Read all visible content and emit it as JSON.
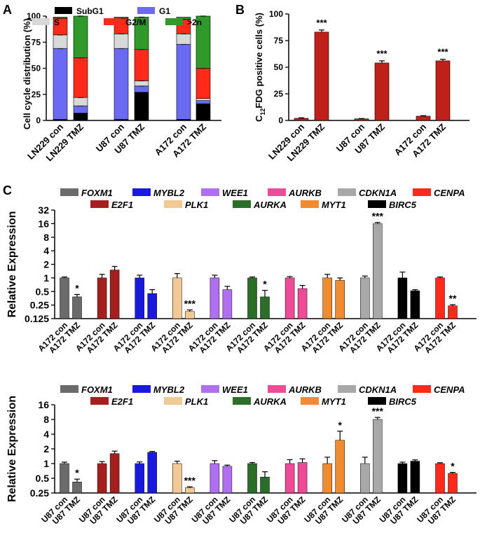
{
  "panel_labels": {
    "a": "A",
    "b": "B",
    "c": "C"
  },
  "chart_data": [
    {
      "id": "A",
      "type": "bar",
      "stacked": true,
      "ylabel": "Cell cycle distribution (%)",
      "ylim": [
        0,
        100
      ],
      "yticks": [
        0,
        25,
        50,
        75,
        100
      ],
      "categories": [
        "LN229 con",
        "LN229 TMZ",
        "U87 con",
        "U87 TMZ",
        "A172 con",
        "A172 TMZ"
      ],
      "series": [
        {
          "name": "SubG1",
          "color": "#000000",
          "values": [
            1,
            7,
            1,
            27,
            1,
            16
          ]
        },
        {
          "name": "G1",
          "color": "#6a6af2",
          "values": [
            68,
            7,
            68,
            6,
            72,
            3
          ]
        },
        {
          "name": "S",
          "color": "#d8d8d8",
          "values": [
            13,
            8,
            14,
            5,
            10,
            2
          ]
        },
        {
          "name": "G2/M",
          "color": "#ff2a1a",
          "values": [
            16,
            38,
            15,
            30,
            14,
            29
          ]
        },
        {
          "name": ">2n",
          "color": "#2f9a2a",
          "values": [
            1,
            40,
            1,
            31,
            2,
            50
          ]
        }
      ]
    },
    {
      "id": "B",
      "type": "bar",
      "ylabel": "C12FDG positive cells (%)",
      "ylabel_main": "C",
      "ylabel_sub": "12",
      "ylabel_rest": "FDG positive cells (%)",
      "ylim": [
        0,
        100
      ],
      "yticks": [
        0,
        25,
        50,
        75,
        100
      ],
      "color": "#c0201a",
      "categories": [
        "LN229 con",
        "LN229 TMZ",
        "U87 con",
        "U87 TMZ",
        "A172 con",
        "A172 TMZ"
      ],
      "values": [
        2,
        83,
        1.5,
        54,
        4,
        56
      ],
      "errors": [
        0.5,
        2,
        0.3,
        2,
        0.5,
        1.5
      ],
      "significance": [
        "",
        "***",
        "",
        "***",
        "",
        "***"
      ]
    },
    {
      "id": "C-A172",
      "type": "bar",
      "scale": "log2",
      "ylabel": "Relative Expression",
      "ylim": [
        0.125,
        32
      ],
      "yticks": [
        "0.125",
        "0.25",
        "0.5",
        "1",
        "2",
        "4",
        "8",
        "16",
        "32"
      ],
      "legend_row1": [
        "FOXM1",
        "MYBL2",
        "WEE1",
        "AURKB",
        "CDKN1A",
        "CENPA"
      ],
      "legend_row2": [
        "E2F1",
        "PLK1",
        "AURKA",
        "MYT1",
        "BIRC5"
      ],
      "groups": [
        {
          "gene": "FOXM1",
          "color": "#6b6b6b",
          "labels": [
            "A172 con",
            "A172 TMZ"
          ],
          "values": [
            1,
            0.38
          ],
          "errors": [
            0.05,
            0.05
          ],
          "sig": [
            "",
            "*"
          ]
        },
        {
          "gene": "E2F1",
          "color": "#a61f1f",
          "labels": [
            "A172 con",
            "A172 TMZ"
          ],
          "values": [
            1,
            1.5
          ],
          "errors": [
            0.2,
            0.3
          ],
          "sig": [
            "",
            ""
          ]
        },
        {
          "gene": "MYBL2",
          "color": "#1a1adf",
          "labels": [
            "A172 con",
            "A172 TMZ"
          ],
          "values": [
            1,
            0.45
          ],
          "errors": [
            0.15,
            0.1
          ],
          "sig": [
            "",
            ""
          ]
        },
        {
          "gene": "PLK1",
          "color": "#f2c994",
          "labels": [
            "A172 con",
            "A172 TMZ"
          ],
          "values": [
            1,
            0.18
          ],
          "errors": [
            0.25,
            0.015
          ],
          "sig": [
            "",
            "***"
          ]
        },
        {
          "gene": "WEE1",
          "color": "#b06ef0",
          "labels": [
            "A172 con",
            "A172 TMZ"
          ],
          "values": [
            1,
            0.55
          ],
          "errors": [
            0.15,
            0.1
          ],
          "sig": [
            "",
            ""
          ]
        },
        {
          "gene": "AURKA",
          "color": "#2a6e2a",
          "labels": [
            "A172 con",
            "A172 TMZ"
          ],
          "values": [
            1,
            0.38
          ],
          "errors": [
            0.05,
            0.15
          ],
          "sig": [
            "",
            "*"
          ]
        },
        {
          "gene": "AURKB",
          "color": "#ee4a97",
          "labels": [
            "A172 con",
            "A172 TMZ"
          ],
          "values": [
            1,
            0.58
          ],
          "errors": [
            0.07,
            0.1
          ],
          "sig": [
            "",
            ""
          ]
        },
        {
          "gene": "MYT1",
          "color": "#f08c2f",
          "labels": [
            "A172 con",
            "A172 TMZ"
          ],
          "values": [
            1,
            0.88
          ],
          "errors": [
            0.2,
            0.12
          ],
          "sig": [
            "",
            ""
          ]
        },
        {
          "gene": "CDKN1A",
          "color": "#a8a8a8",
          "labels": [
            "A172 con",
            "A172 TMZ"
          ],
          "values": [
            1,
            16
          ],
          "errors": [
            0.1,
            1
          ],
          "sig": [
            "",
            "***"
          ]
        },
        {
          "gene": "BIRC5",
          "color": "#000000",
          "labels": [
            "A172 con",
            "A172 TMZ"
          ],
          "values": [
            1,
            0.52
          ],
          "errors": [
            0.35,
            0.03
          ],
          "sig": [
            "",
            ""
          ]
        },
        {
          "gene": "CENPA",
          "color": "#ff2a1a",
          "labels": [
            "A172 con",
            "A172 TMZ"
          ],
          "values": [
            1,
            0.24
          ],
          "errors": [
            0.05,
            0.015
          ],
          "sig": [
            "",
            "**"
          ]
        }
      ]
    },
    {
      "id": "C-U87",
      "type": "bar",
      "scale": "log2",
      "ylabel": "Relative Expression",
      "ylim": [
        0.25,
        16
      ],
      "yticks": [
        "0.25",
        "0.5",
        "1",
        "2",
        "4",
        "8",
        "16"
      ],
      "legend_row1": [
        "FOXM1",
        "MYBL2",
        "WEE1",
        "AURKB",
        "CDKN1A",
        "CENPA"
      ],
      "legend_row2": [
        "E2F1",
        "PLK1",
        "AURKA",
        "MYT1",
        "BIRC5"
      ],
      "groups": [
        {
          "gene": "FOXM1",
          "color": "#6b6b6b",
          "labels": [
            "U87 con",
            "U87 TMZ"
          ],
          "values": [
            1,
            0.42
          ],
          "errors": [
            0.07,
            0.06
          ],
          "sig": [
            "",
            "*"
          ]
        },
        {
          "gene": "E2F1",
          "color": "#a61f1f",
          "labels": [
            "U87 con",
            "U87 TMZ"
          ],
          "values": [
            1,
            1.6
          ],
          "errors": [
            0.1,
            0.2
          ],
          "sig": [
            "",
            ""
          ]
        },
        {
          "gene": "MYBL2",
          "color": "#1a1adf",
          "labels": [
            "U87 con",
            "U87 TMZ"
          ],
          "values": [
            1,
            1.7
          ],
          "errors": [
            0.08,
            0.07
          ],
          "sig": [
            "",
            ""
          ]
        },
        {
          "gene": "PLK1",
          "color": "#f2c994",
          "labels": [
            "U87 con",
            "U87 TMZ"
          ],
          "values": [
            1,
            0.32
          ],
          "errors": [
            0.12,
            0.015
          ],
          "sig": [
            "",
            "***"
          ]
        },
        {
          "gene": "WEE1",
          "color": "#b06ef0",
          "labels": [
            "U87 con",
            "U87 TMZ"
          ],
          "values": [
            1,
            0.88
          ],
          "errors": [
            0.15,
            0.05
          ],
          "sig": [
            "",
            ""
          ]
        },
        {
          "gene": "AURKA",
          "color": "#2a6e2a",
          "labels": [
            "U87 con",
            "U87 TMZ"
          ],
          "values": [
            1,
            0.53
          ],
          "errors": [
            0.05,
            0.15
          ],
          "sig": [
            "",
            ""
          ]
        },
        {
          "gene": "AURKB",
          "color": "#ee4a97",
          "labels": [
            "U87 con",
            "U87 TMZ"
          ],
          "values": [
            1,
            1.05
          ],
          "errors": [
            0.2,
            0.2
          ],
          "sig": [
            "",
            ""
          ]
        },
        {
          "gene": "MYT1",
          "color": "#f08c2f",
          "labels": [
            "U87 con",
            "U87 TMZ"
          ],
          "values": [
            1,
            3
          ],
          "errors": [
            0.35,
            1.6
          ],
          "sig": [
            "",
            "*"
          ]
        },
        {
          "gene": "CDKN1A",
          "color": "#a8a8a8",
          "labels": [
            "U87 con",
            "U87 TMZ"
          ],
          "values": [
            1,
            8
          ],
          "errors": [
            0.35,
            0.8
          ],
          "sig": [
            "",
            "***"
          ]
        },
        {
          "gene": "BIRC5",
          "color": "#000000",
          "labels": [
            "U87 con",
            "U87 TMZ"
          ],
          "values": [
            1,
            1.12
          ],
          "errors": [
            0.07,
            0.07
          ],
          "sig": [
            "",
            ""
          ]
        },
        {
          "gene": "CENPA",
          "color": "#ff2a1a",
          "labels": [
            "U87 con",
            "U87 TMZ"
          ],
          "values": [
            1,
            0.63
          ],
          "errors": [
            0.04,
            0.03
          ],
          "sig": [
            "",
            "*"
          ]
        }
      ]
    }
  ]
}
